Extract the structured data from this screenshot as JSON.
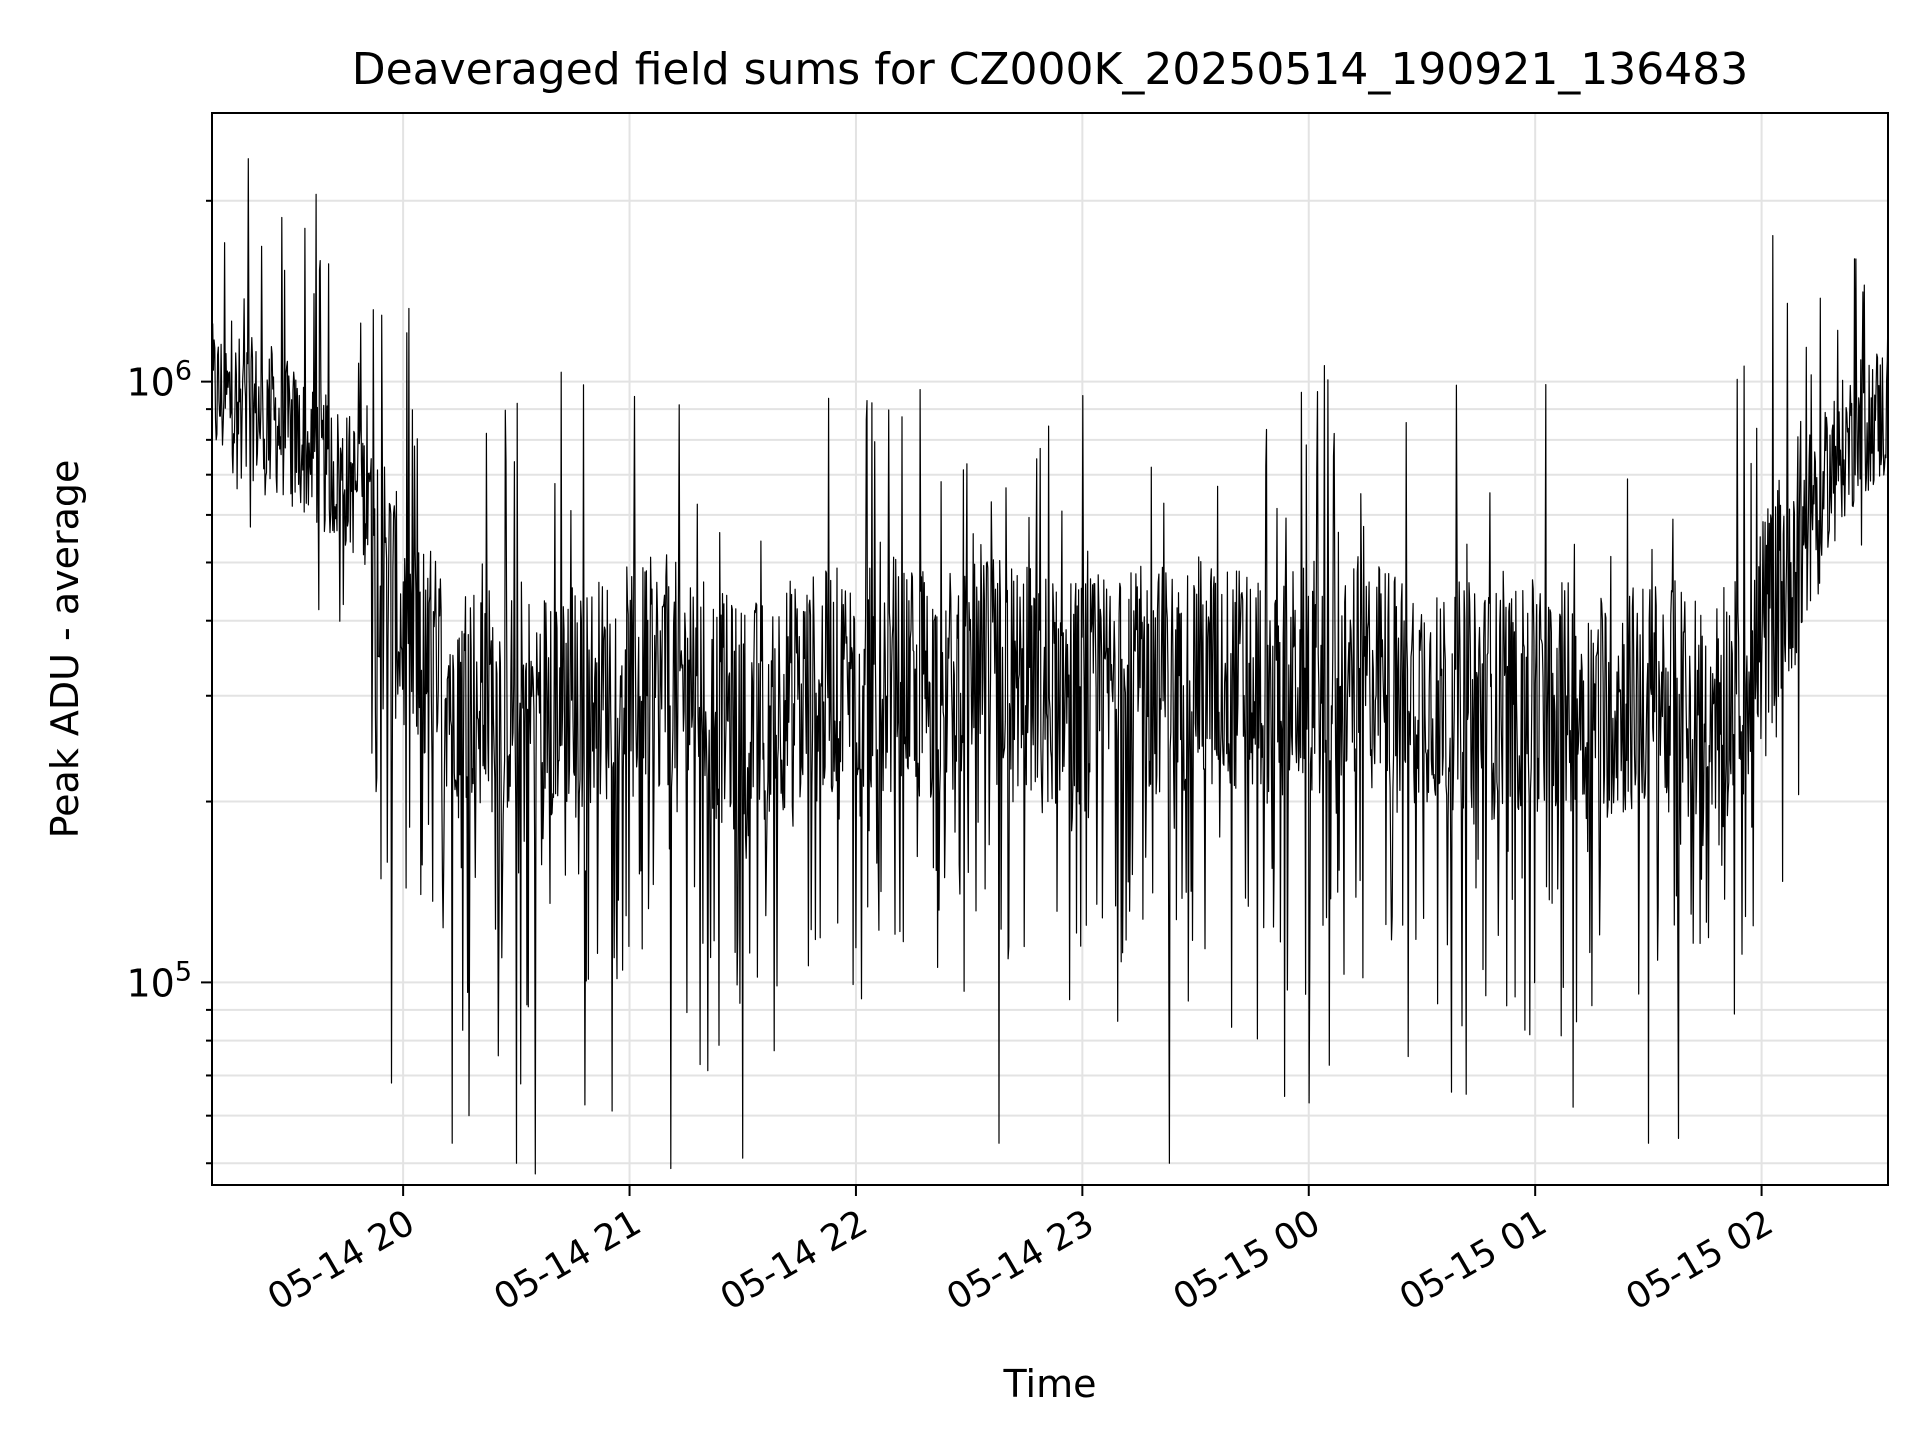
{
  "chart_data": {
    "type": "line",
    "title": "Deaveraged field sums for CZ000K_20250514_190921_136483",
    "xlabel": "Time",
    "ylabel": "Peak ADU - average",
    "yscale": "log",
    "ylim": [
      46000,
      2800000
    ],
    "xlim": [
      "2025-05-14 19:09:21",
      "2025-05-15 02:33:30"
    ],
    "grid": true,
    "line_color": "#000000",
    "x_ticks": [
      {
        "value": "2025-05-14 20:00",
        "label": "05-14 20"
      },
      {
        "value": "2025-05-14 21:00",
        "label": "05-14 21"
      },
      {
        "value": "2025-05-14 22:00",
        "label": "05-14 22"
      },
      {
        "value": "2025-05-14 23:00",
        "label": "05-14 23"
      },
      {
        "value": "2025-05-15 00:00",
        "label": "05-15 00"
      },
      {
        "value": "2025-05-15 01:00",
        "label": "05-15 01"
      },
      {
        "value": "2025-05-15 02:00",
        "label": "05-15 02"
      }
    ],
    "y_ticks": [
      {
        "value": 100000,
        "base": "10",
        "exp": "5"
      },
      {
        "value": 1000000,
        "base": "10",
        "exp": "6"
      }
    ],
    "series": [
      {
        "x": [
          "2025-05-14 19:10",
          "2025-05-14 19:20",
          "2025-05-14 19:30",
          "2025-05-14 19:40",
          "2025-05-14 19:50",
          "2025-05-14 19:55",
          "2025-05-14 20:00",
          "2025-05-14 20:10",
          "2025-05-14 20:20",
          "2025-05-14 20:30",
          "2025-05-14 20:40",
          "2025-05-14 20:50",
          "2025-05-14 21:00",
          "2025-05-14 21:10",
          "2025-05-14 21:20",
          "2025-05-14 21:30",
          "2025-05-14 21:40",
          "2025-05-14 21:50",
          "2025-05-14 22:00",
          "2025-05-14 22:10",
          "2025-05-14 22:20",
          "2025-05-14 22:30",
          "2025-05-14 22:40",
          "2025-05-14 22:50",
          "2025-05-14 23:00",
          "2025-05-14 23:10",
          "2025-05-14 23:20",
          "2025-05-14 23:30",
          "2025-05-14 23:40",
          "2025-05-14 23:50",
          "2025-05-15 00:00",
          "2025-05-15 00:10",
          "2025-05-15 00:20",
          "2025-05-15 00:30",
          "2025-05-15 00:40",
          "2025-05-15 00:50",
          "2025-05-15 01:00",
          "2025-05-15 01:10",
          "2025-05-15 01:20",
          "2025-05-15 01:30",
          "2025-05-15 01:40",
          "2025-05-15 01:50",
          "2025-05-15 01:55",
          "2025-05-15 02:00",
          "2025-05-15 02:10",
          "2025-05-15 02:20",
          "2025-05-15 02:30"
        ],
        "values": [
          950000,
          900000,
          820000,
          720000,
          650000,
          500000,
          380000,
          330000,
          300000,
          290000,
          300000,
          300000,
          320000,
          330000,
          300000,
          270000,
          300000,
          310000,
          320000,
          330000,
          310000,
          320000,
          330000,
          310000,
          300000,
          310000,
          320000,
          330000,
          320000,
          310000,
          320000,
          330000,
          320000,
          310000,
          300000,
          290000,
          300000,
          290000,
          290000,
          300000,
          300000,
          290000,
          320000,
          380000,
          550000,
          750000,
          880000
        ],
        "peaks": [
          {
            "x": "2025-05-14 19:19",
            "value": 2350000
          },
          {
            "x": "2025-05-14 19:37",
            "value": 2050000
          },
          {
            "x": "2025-05-14 19:34",
            "value": 1800000
          },
          {
            "x": "2025-05-14 20:22",
            "value": 820000
          },
          {
            "x": "2025-05-14 22:03",
            "value": 930000
          },
          {
            "x": "2025-05-14 22:17",
            "value": 970000
          },
          {
            "x": "2025-05-14 23:23",
            "value": 990000
          },
          {
            "x": "2025-05-14 23:58",
            "value": 960000
          },
          {
            "x": "2025-05-15 02:03",
            "value": 1750000
          },
          {
            "x": "2025-05-15 02:25",
            "value": 1600000
          }
        ],
        "troughs": [
          {
            "x": "2025-05-14 19:57",
            "value": 68000
          },
          {
            "x": "2025-05-14 20:13",
            "value": 54000
          },
          {
            "x": "2025-05-14 20:30",
            "value": 50000
          },
          {
            "x": "2025-05-14 20:35",
            "value": 48000
          },
          {
            "x": "2025-05-14 21:11",
            "value": 49000
          },
          {
            "x": "2025-05-14 21:30",
            "value": 51000
          },
          {
            "x": "2025-05-14 22:38",
            "value": 54000
          },
          {
            "x": "2025-05-14 23:23",
            "value": 50000
          },
          {
            "x": "2025-05-15 00:00",
            "value": 63000
          },
          {
            "x": "2025-05-15 01:10",
            "value": 62000
          },
          {
            "x": "2025-05-15 01:30",
            "value": 54000
          },
          {
            "x": "2025-05-15 01:38",
            "value": 55000
          }
        ]
      }
    ]
  }
}
